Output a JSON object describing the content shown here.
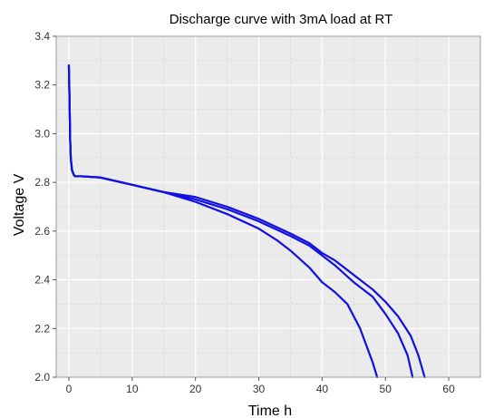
{
  "chart_data": {
    "type": "line",
    "title": "Discharge curve with 3mA load at RT",
    "xlabel": "Time h",
    "ylabel": "Voltage V",
    "xlim": [
      -2,
      65
    ],
    "ylim": [
      2.0,
      3.4
    ],
    "x_ticks": [
      0,
      10,
      20,
      30,
      40,
      50,
      60
    ],
    "y_ticks": [
      2.0,
      2.2,
      2.4,
      2.6,
      2.8,
      3.0,
      3.2,
      3.4
    ],
    "x_tick_labels": [
      "0",
      "10",
      "20",
      "30",
      "40",
      "50",
      "60"
    ],
    "y_tick_labels": [
      "2.0",
      "2.2",
      "2.4",
      "2.6",
      "2.8",
      "3.0",
      "3.2",
      "3.4"
    ],
    "grid": true,
    "minor_grid": true,
    "legend": false,
    "plot_background": "#ebebeb",
    "grid_color": "#ffffff",
    "minor_grid_color": "#d8d8d8",
    "line_color": "#1010e0",
    "series": [
      {
        "x": [
          0,
          0.1,
          0.2,
          0.3,
          0.5,
          0.8,
          1,
          2,
          5,
          10,
          15,
          20,
          25,
          30,
          33,
          35,
          38,
          40,
          42,
          44,
          46,
          47,
          48,
          48.7
        ],
        "y": [
          3.28,
          3.15,
          2.98,
          2.9,
          2.85,
          2.83,
          2.825,
          2.825,
          2.82,
          2.79,
          2.76,
          2.72,
          2.67,
          2.61,
          2.56,
          2.52,
          2.45,
          2.39,
          2.35,
          2.3,
          2.2,
          2.13,
          2.06,
          2.0
        ]
      },
      {
        "x": [
          0,
          0.1,
          0.2,
          0.3,
          0.5,
          0.8,
          1,
          2,
          5,
          10,
          15,
          20,
          25,
          30,
          35,
          38,
          40,
          42,
          45,
          48,
          50,
          52,
          53.5,
          54.3
        ],
        "y": [
          3.28,
          3.15,
          2.98,
          2.9,
          2.85,
          2.83,
          2.825,
          2.825,
          2.82,
          2.79,
          2.76,
          2.73,
          2.69,
          2.64,
          2.58,
          2.54,
          2.5,
          2.46,
          2.39,
          2.33,
          2.26,
          2.18,
          2.09,
          2.0
        ]
      },
      {
        "x": [
          0,
          0.1,
          0.2,
          0.3,
          0.5,
          0.8,
          1,
          2,
          5,
          10,
          15,
          20,
          25,
          30,
          35,
          38,
          40,
          42,
          45,
          48,
          50,
          52,
          54,
          55.2,
          56.2
        ],
        "y": [
          3.28,
          3.15,
          2.98,
          2.9,
          2.85,
          2.83,
          2.825,
          2.825,
          2.82,
          2.79,
          2.76,
          2.74,
          2.7,
          2.65,
          2.59,
          2.55,
          2.51,
          2.48,
          2.42,
          2.36,
          2.31,
          2.25,
          2.17,
          2.09,
          2.0
        ]
      }
    ]
  }
}
